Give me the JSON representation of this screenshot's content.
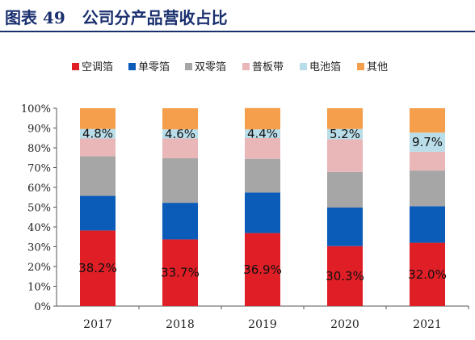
{
  "title": {
    "figure_number": "图表 49",
    "text": "公司分产品营收占比"
  },
  "chart_data": {
    "type": "bar",
    "stacked": true,
    "categories": [
      "2017",
      "2018",
      "2019",
      "2020",
      "2021"
    ],
    "ylim": [
      0,
      100
    ],
    "yticks": [
      "0%",
      "10%",
      "20%",
      "30%",
      "40%",
      "50%",
      "60%",
      "70%",
      "80%",
      "90%",
      "100%"
    ],
    "legend_position": "top",
    "grid": false,
    "series": [
      {
        "name": "空调箔",
        "color": "#e01e26",
        "values": [
          38.2,
          33.7,
          36.9,
          30.3,
          32.0
        ],
        "labels": [
          "38.2%",
          "33.7%",
          "36.9%",
          "30.3%",
          "32.0%"
        ]
      },
      {
        "name": "单零箔",
        "color": "#0b5bb8",
        "values": [
          17.5,
          18.5,
          20.5,
          19.5,
          18.5
        ]
      },
      {
        "name": "双零箔",
        "color": "#a6a6a6",
        "values": [
          20.0,
          22.5,
          17.0,
          18.0,
          18.0
        ]
      },
      {
        "name": "普板带",
        "color": "#e9b7b8",
        "values": [
          9.0,
          10.0,
          10.5,
          16.5,
          9.5
        ]
      },
      {
        "name": "电池箔",
        "color": "#b9dde9",
        "values": [
          4.8,
          4.6,
          4.4,
          5.2,
          9.7
        ],
        "labels": [
          "4.8%",
          "4.6%",
          "4.4%",
          "5.2%",
          "9.7%"
        ]
      },
      {
        "name": "其他",
        "color": "#f59e4b",
        "values": [
          10.5,
          10.7,
          10.8,
          10.5,
          12.3
        ]
      }
    ]
  }
}
